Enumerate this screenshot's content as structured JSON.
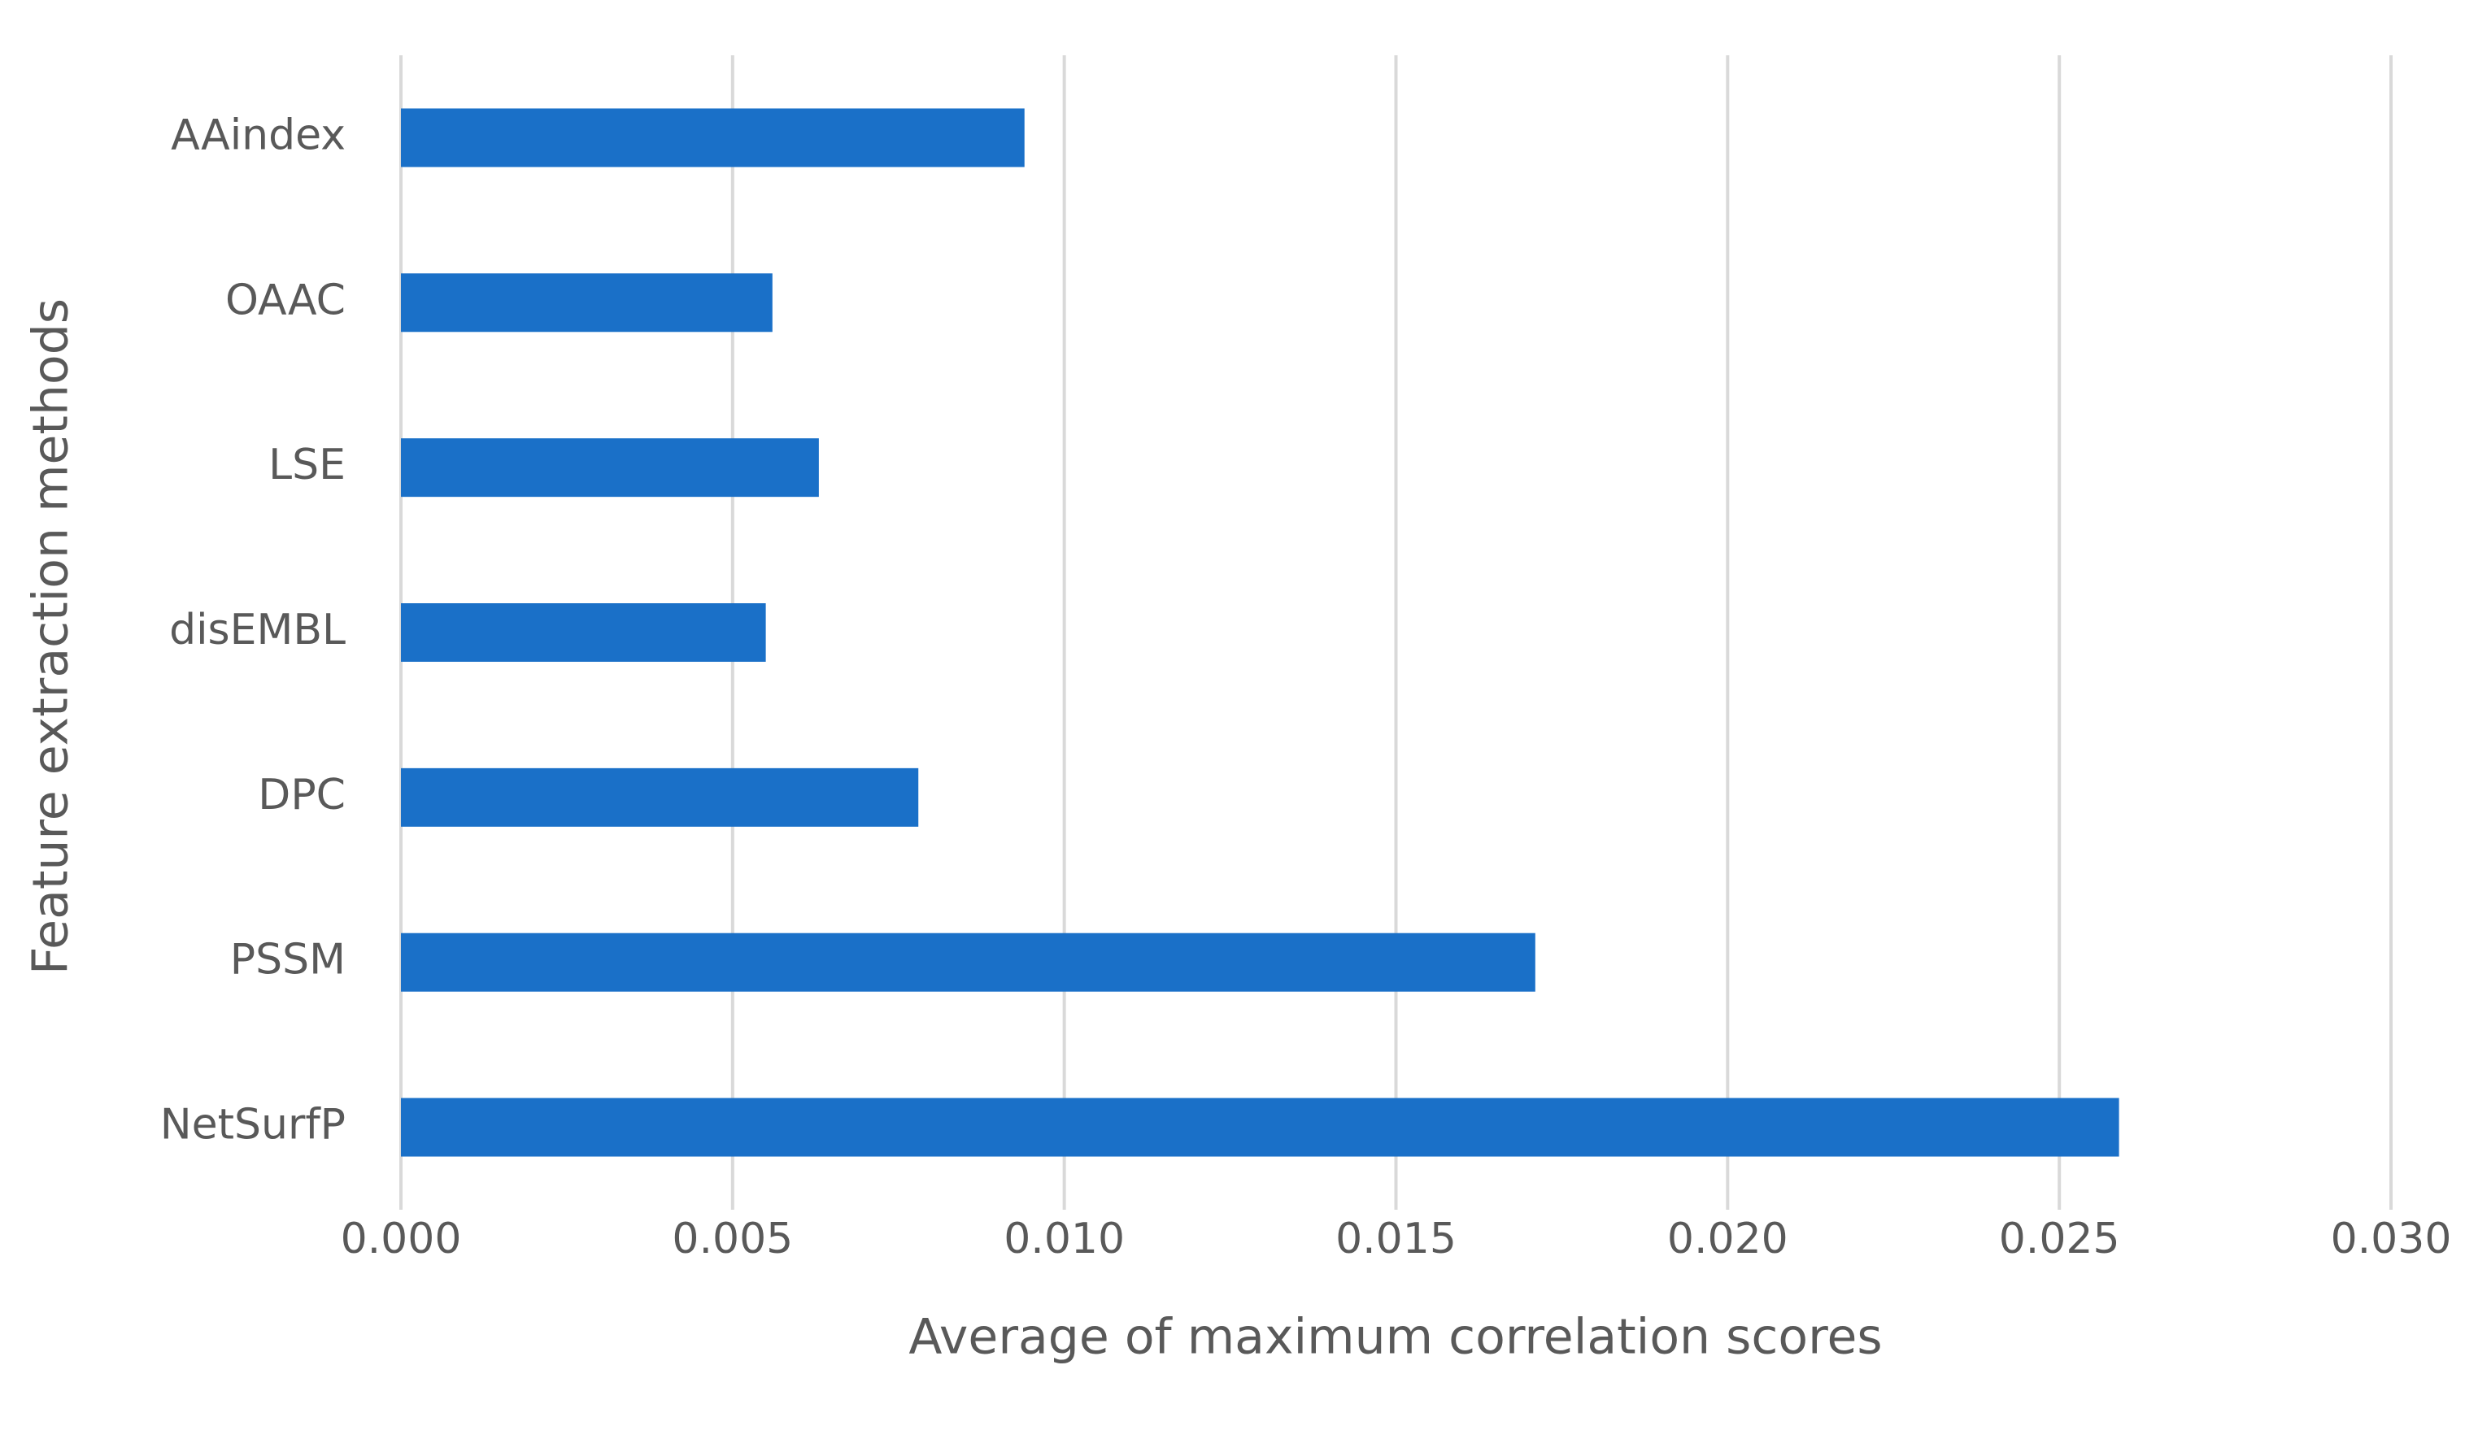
{
  "chart_data": {
    "type": "barh",
    "x_label": "Average of maximum correlation  scores",
    "y_label": "Feature extraction  methods",
    "categories": [
      "AAindex",
      "OAAC",
      "LSE",
      "disEMBL",
      "DPC",
      "PSSM",
      "NetSurfP"
    ],
    "values": [
      0.0094,
      0.0056,
      0.0063,
      0.0055,
      0.0078,
      0.0171,
      0.0259
    ],
    "color": "#1a70c8",
    "xlim": [
      0,
      0.03
    ],
    "xticks": [
      {
        "value": 0,
        "label": "0.000"
      },
      {
        "value": 0.005,
        "label": "0.005"
      },
      {
        "value": 0.01,
        "label": "0.010"
      },
      {
        "value": 0.015,
        "label": "0.015"
      },
      {
        "value": 0.02,
        "label": "0.020"
      },
      {
        "value": 0.025,
        "label": "0.025"
      },
      {
        "value": 0.03,
        "label": "0.030"
      }
    ],
    "grid": true
  }
}
